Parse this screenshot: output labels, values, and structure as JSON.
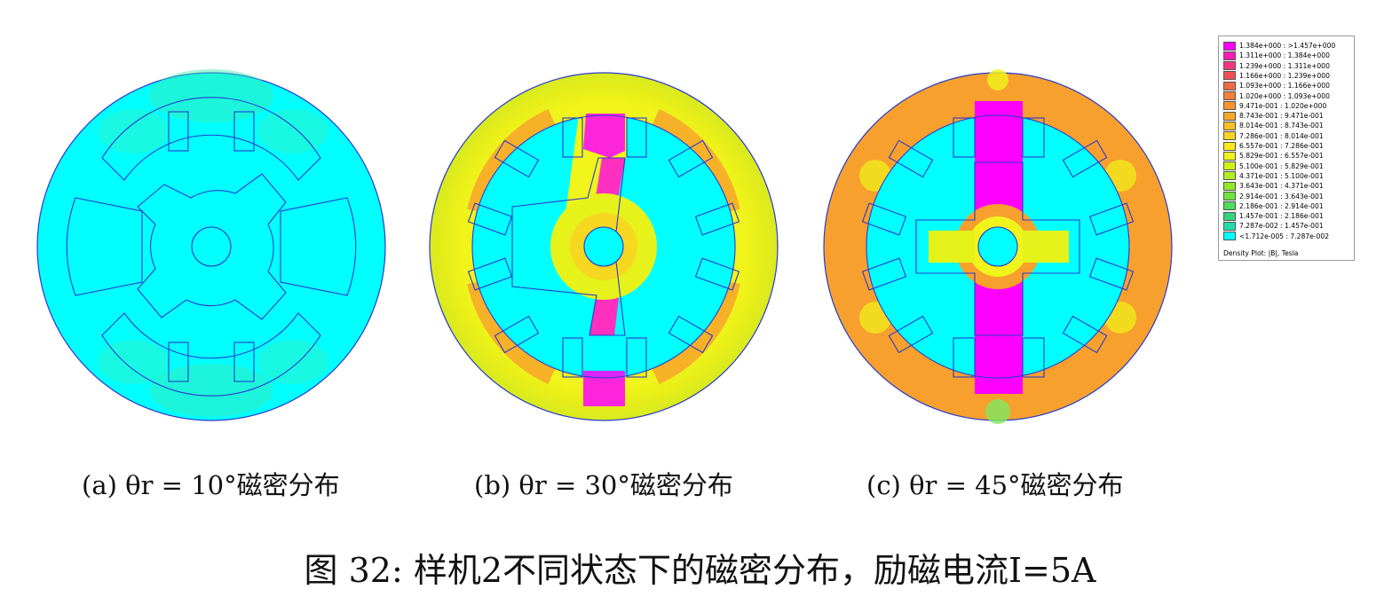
{
  "panels": [
    {
      "id": "a",
      "caption": "(a) θr = 10°磁密分布",
      "rotor_angle_deg": 10
    },
    {
      "id": "b",
      "caption": "(b) θr = 30°磁密分布",
      "rotor_angle_deg": 30
    },
    {
      "id": "c",
      "caption": "(c) θr = 45°磁密分布",
      "rotor_angle_deg": 45
    }
  ],
  "figure_caption": "图 32: 样机2不同状态下的磁密分布，励磁电流I=5A",
  "legend": {
    "title": "Density Plot: |B|, Tesla",
    "entries": [
      {
        "label": "1.384e+000 : >1.457e+000",
        "color": "#ff00ff"
      },
      {
        "label": "1.311e+000 : 1.384e+000",
        "color": "#f81ab4"
      },
      {
        "label": "1.239e+000 : 1.311e+000",
        "color": "#f3357e"
      },
      {
        "label": "1.166e+000 : 1.239e+000",
        "color": "#f14f58"
      },
      {
        "label": "1.093e+000 : 1.166e+000",
        "color": "#f26a44"
      },
      {
        "label": "1.020e+000 : 1.093e+000",
        "color": "#f47f38"
      },
      {
        "label": "9.471e-001 : 1.020e+000",
        "color": "#f79430"
      },
      {
        "label": "8.743e-001 : 9.471e-001",
        "color": "#f9a82a"
      },
      {
        "label": "8.014e-001 : 8.743e-001",
        "color": "#fbbe24"
      },
      {
        "label": "7.286e-001 : 8.014e-001",
        "color": "#fcd41e"
      },
      {
        "label": "6.557e-001 : 7.286e-001",
        "color": "#fde81a"
      },
      {
        "label": "5.829e-001 : 6.557e-001",
        "color": "#eef416"
      },
      {
        "label": "5.100e-001 : 5.829e-001",
        "color": "#d2f216"
      },
      {
        "label": "4.371e-001 : 5.100e-001",
        "color": "#b2ee1c"
      },
      {
        "label": "3.643e-001 : 4.371e-001",
        "color": "#8eea28"
      },
      {
        "label": "2.914e-001 : 3.643e-001",
        "color": "#6ee43c"
      },
      {
        "label": "2.186e-001 : 2.914e-001",
        "color": "#4edc5a"
      },
      {
        "label": "1.457e-001 : 2.186e-001",
        "color": "#34d47e"
      },
      {
        "label": "7.287e-002 : 1.457e-001",
        "color": "#22dcb0"
      },
      {
        "label": "<1.712e-005 : 7.287e-002",
        "color": "#00ffff"
      }
    ]
  },
  "colors": {
    "low": "#00ffff",
    "mid": "#f0f41a",
    "high_orange": "#f7a02d",
    "peak": "#ff00ff",
    "outline": "#1a2ccc"
  }
}
